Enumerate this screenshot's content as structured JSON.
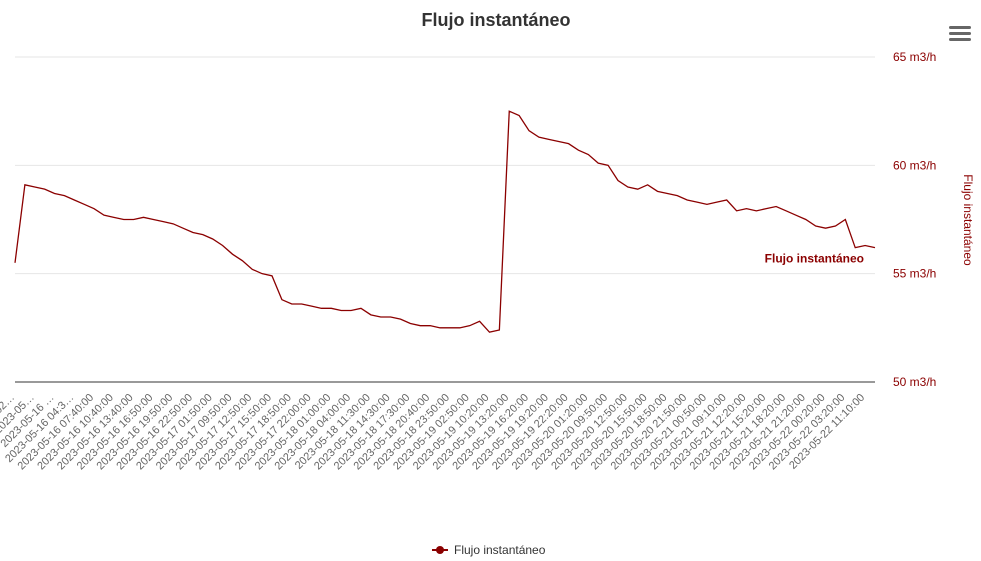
{
  "chart_data": {
    "type": "line",
    "title": "Flujo instantáneo",
    "y_axis_label": "Flujo instantáneo",
    "ylim": [
      50,
      65
    ],
    "yticks": [
      {
        "value": 50,
        "label": "50 m3/h"
      },
      {
        "value": 55,
        "label": "55 m3/h"
      },
      {
        "value": 60,
        "label": "60 m3/h"
      },
      {
        "value": 65,
        "label": "65 m3/h"
      }
    ],
    "grid": true,
    "legend": "bottom",
    "categories": [
      "202…",
      null,
      "2023-05…",
      null,
      "2023-05-16 …",
      null,
      "2023-05-16 04:3…",
      null,
      "2023-05-16 07:40:00",
      null,
      "2023-05-16 10:40:00",
      null,
      "2023-05-16 13:40:00",
      null,
      "2023-05-16 16:50:00",
      null,
      "2023-05-16 19:50:00",
      null,
      "2023-05-16 22:50:00",
      null,
      "2023-05-17 01:50:00",
      null,
      "2023-05-17 09:50:00",
      null,
      "2023-05-17 12:50:00",
      null,
      "2023-05-17 15:50:00",
      null,
      "2023-05-17 18:50:00",
      null,
      "2023-05-17 22:00:00",
      null,
      "2023-05-18 01:00:00",
      null,
      "2023-05-18 04:00:00",
      null,
      "2023-05-18 11:30:00",
      null,
      "2023-05-18 14:30:00",
      null,
      "2023-05-18 17:30:00",
      null,
      "2023-05-18 20:40:00",
      null,
      "2023-05-18 23:50:00",
      null,
      "2023-05-19 02:50:00",
      null,
      "2023-05-19 10:20:00",
      null,
      "2023-05-19 13:20:00",
      null,
      "2023-05-19 16:20:00",
      null,
      "2023-05-19 19:20:00",
      null,
      "2023-05-19 22:20:00",
      null,
      "2023-05-20 01:20:00",
      null,
      "2023-05-20 09:50:00",
      null,
      "2023-05-20 12:50:00",
      null,
      "2023-05-20 15:50:00",
      null,
      "2023-05-20 18:50:00",
      null,
      "2023-05-20 21:50:00",
      null,
      "2023-05-21 00:50:00",
      null,
      "2023-05-21 09:10:00",
      null,
      "2023-05-21 12:20:00",
      null,
      "2023-05-21 15:20:00",
      null,
      "2023-05-21 18:20:00",
      null,
      "2023-05-21 21:20:00",
      null,
      "2023-05-22 00:20:00",
      null,
      "2023-05-22 03:20:00",
      null,
      "2023-05-22 11:10:00",
      null
    ],
    "series": [
      {
        "name": "Flujo instantáneo",
        "color": "#8b0000",
        "values": [
          55.5,
          59.1,
          59.0,
          58.9,
          58.7,
          58.6,
          58.4,
          58.2,
          58.0,
          57.7,
          57.6,
          57.5,
          57.5,
          57.6,
          57.5,
          57.4,
          57.3,
          57.1,
          56.9,
          56.8,
          56.6,
          56.3,
          55.9,
          55.6,
          55.2,
          55.0,
          54.9,
          53.8,
          53.6,
          53.6,
          53.5,
          53.4,
          53.4,
          53.3,
          53.3,
          53.4,
          53.1,
          53.0,
          53.0,
          52.9,
          52.7,
          52.6,
          52.6,
          52.5,
          52.5,
          52.5,
          52.6,
          52.8,
          52.3,
          52.4,
          62.5,
          62.3,
          61.6,
          61.3,
          61.2,
          61.1,
          61.0,
          60.7,
          60.5,
          60.1,
          60.0,
          59.3,
          59.0,
          58.9,
          59.1,
          58.8,
          58.7,
          58.6,
          58.4,
          58.3,
          58.2,
          58.3,
          58.4,
          57.9,
          58.0,
          57.9,
          58.0,
          58.1,
          57.9,
          57.7,
          57.5,
          57.2,
          57.1,
          57.2,
          57.5,
          56.2,
          56.3,
          56.2
        ]
      }
    ]
  }
}
